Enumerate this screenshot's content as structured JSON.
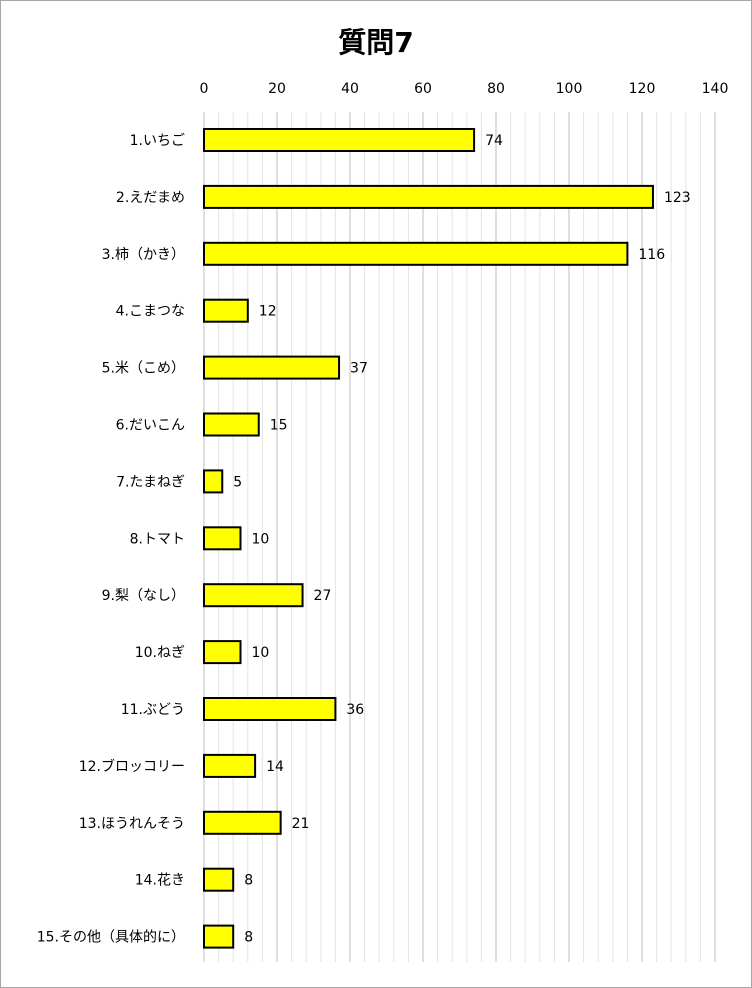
{
  "chart_data": {
    "type": "bar",
    "orientation": "horizontal",
    "title": "質問7",
    "xlabel": "",
    "ylabel": "",
    "xlim": [
      0,
      140
    ],
    "x_ticks": [
      "0",
      "20",
      "40",
      "60",
      "80",
      "100",
      "120",
      "140"
    ],
    "x_axis_position": "top",
    "grid": true,
    "legend": "none",
    "bar_color": "#FFFF00",
    "bar_edge_color": "#000000",
    "categories": [
      "1.いちご",
      "2.えだまめ",
      "3.柿（かき）",
      "4.こまつな",
      "5.米（こめ）",
      "6.だいこん",
      "7.たまねぎ",
      "8.トマト",
      "9.梨（なし）",
      "10.ねぎ",
      "11.ぶどう",
      "12.ブロッコリー",
      "13.ほうれんそう",
      "14.花き",
      "15.その他（具体的に）"
    ],
    "values": [
      74,
      123,
      116,
      12,
      37,
      15,
      5,
      10,
      27,
      10,
      36,
      14,
      21,
      8,
      8
    ]
  }
}
